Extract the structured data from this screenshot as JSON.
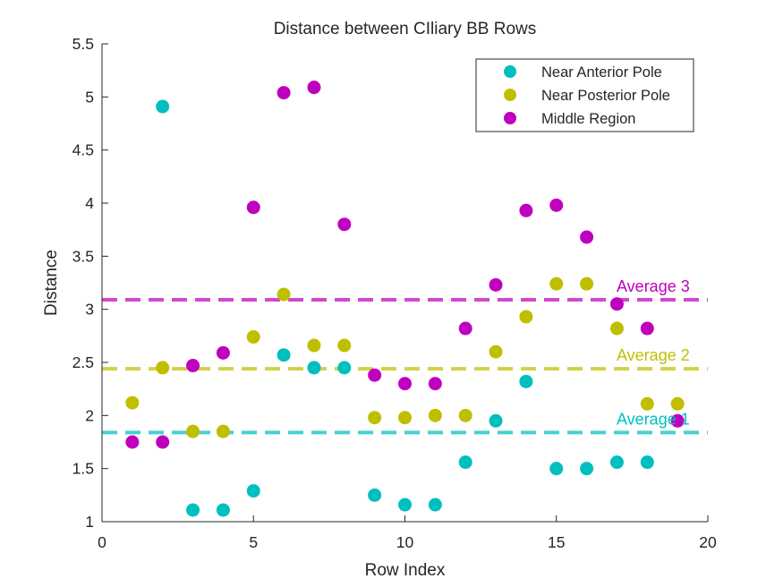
{
  "chart_data": {
    "type": "scatter",
    "title": "Distance between CIliary BB Rows",
    "xlabel": "Row Index",
    "ylabel": "Distance",
    "xlim": [
      0,
      20
    ],
    "ylim": [
      1,
      5.5
    ],
    "xticks": [
      0,
      5,
      10,
      15,
      20
    ],
    "xtick_labels": [
      "0",
      "5",
      "10",
      "15",
      "20"
    ],
    "yticks": [
      1,
      1.5,
      2,
      2.5,
      3,
      3.5,
      4,
      4.5,
      5,
      5.5
    ],
    "ytick_labels": [
      "1",
      "1.5",
      "2",
      "2.5",
      "3",
      "3.5",
      "4",
      "4.5",
      "5",
      "5.5"
    ],
    "grid": false,
    "legend_position": "top-right",
    "series": [
      {
        "name": "Near Anterior Pole",
        "color": "#00BFBF",
        "x": [
          2,
          3,
          4,
          5,
          6,
          7,
          8,
          9,
          10,
          11,
          12,
          13,
          14,
          15,
          16,
          17,
          18
        ],
        "y": [
          4.91,
          1.11,
          1.11,
          1.29,
          2.57,
          2.45,
          2.45,
          1.25,
          1.16,
          1.16,
          1.56,
          1.95,
          2.32,
          1.5,
          1.5,
          1.56,
          1.56
        ]
      },
      {
        "name": "Near Posterior Pole",
        "color": "#BFBF00",
        "x": [
          1,
          2,
          3,
          4,
          5,
          6,
          7,
          8,
          9,
          10,
          11,
          12,
          13,
          14,
          15,
          16,
          17,
          18,
          19
        ],
        "y": [
          2.12,
          2.45,
          1.85,
          1.85,
          2.74,
          3.14,
          2.66,
          2.66,
          1.98,
          1.98,
          2.0,
          2.0,
          2.6,
          2.93,
          3.24,
          3.24,
          2.82,
          2.11,
          2.11
        ]
      },
      {
        "name": "Middle Region",
        "color": "#BF00BF",
        "x": [
          1,
          2,
          3,
          4,
          5,
          6,
          7,
          8,
          9,
          10,
          11,
          12,
          13,
          14,
          15,
          16,
          17,
          18,
          19
        ],
        "y": [
          1.75,
          1.75,
          2.47,
          2.59,
          3.96,
          5.04,
          5.09,
          3.8,
          2.38,
          2.3,
          2.3,
          2.82,
          3.23,
          3.93,
          3.98,
          3.68,
          3.05,
          2.82,
          1.95
        ]
      }
    ],
    "reference_lines": [
      {
        "label": "Average 1",
        "y": 1.84,
        "color": "#00BFBF"
      },
      {
        "label": "Average 2",
        "y": 2.44,
        "color": "#BFBF00"
      },
      {
        "label": "Average 3",
        "y": 3.09,
        "color": "#BF00BF"
      }
    ]
  }
}
